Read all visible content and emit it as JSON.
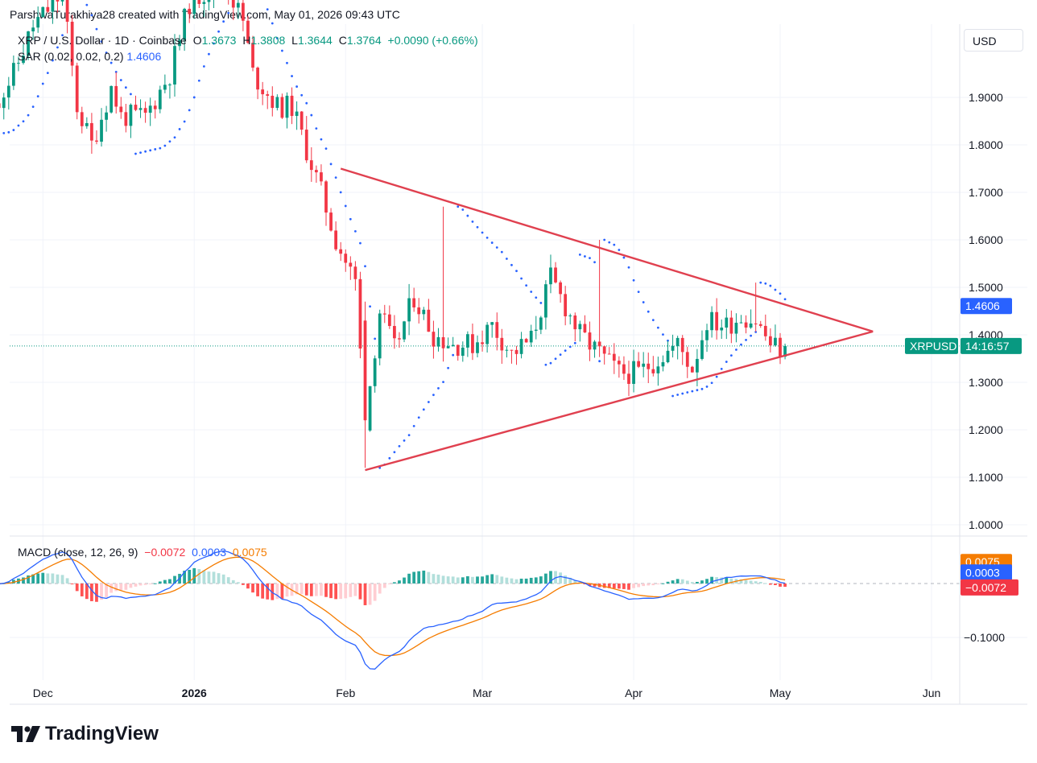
{
  "header": {
    "attribution": "ParshwaTurakhiya28 created with TradingView.com, May 01, 2026 09:43 UTC"
  },
  "legend": {
    "symbol": "XRP / U.S. Dollar · 1D · Coinbase",
    "o_label": "O",
    "o_value": "1.3673",
    "h_label": "H",
    "h_value": "1.3808",
    "l_label": "L",
    "l_value": "1.3644",
    "c_label": "C",
    "c_value": "1.3764",
    "change": "+0.0090 (+0.66%)",
    "sar_label": "SAR (0.02, 0.02, 0.2)",
    "sar_value": "1.4606"
  },
  "currency": "USD",
  "macd_legend": {
    "label": "MACD (close, 12, 26, 9)",
    "hist": "−0.0072",
    "macd": "0.0003",
    "signal": "0.0075"
  },
  "brand": "TradingView",
  "colors": {
    "up": "#089981",
    "down": "#f23645",
    "sar": "#2962ff",
    "macd": "#2962ff",
    "signal": "#f57c00",
    "triangle": "#e0404f"
  },
  "chart_data": [
    {
      "type": "candlestick",
      "price_axis": {
        "ticks": [
          "1.9000",
          "1.8000",
          "1.7000",
          "1.6000",
          "1.5000",
          "1.4000",
          "1.3000",
          "1.2000",
          "1.1000",
          "1.0000"
        ],
        "range": [
          0.96,
          2.08
        ]
      },
      "time_axis": {
        "ticks": [
          "Dec",
          "2026",
          "Feb",
          "Mar",
          "Apr",
          "May",
          "Jun"
        ]
      },
      "badges": {
        "sar": "1.4606",
        "symbol": "XRPUSD",
        "countdown": "14:16:57"
      },
      "last_price": 1.3764,
      "sar_value": 1.4606,
      "triangle": {
        "upper": [
          [
            "2026-01-31",
            1.75
          ],
          [
            "2026-05-20",
            1.407
          ]
        ],
        "lower": [
          [
            "2026-02-05",
            1.115
          ],
          [
            "2026-05-20",
            1.407
          ]
        ]
      }
    },
    {
      "type": "macd",
      "axis": {
        "ticks": [
          "−0.1000"
        ],
        "range": [
          -0.18,
          0.07
        ]
      },
      "values": {
        "histogram": -0.0072,
        "macd": 0.0003,
        "signal": 0.0075
      },
      "series": [
        {
          "name": "MACD"
        },
        {
          "name": "Signal"
        },
        {
          "name": "Histogram"
        }
      ]
    }
  ]
}
